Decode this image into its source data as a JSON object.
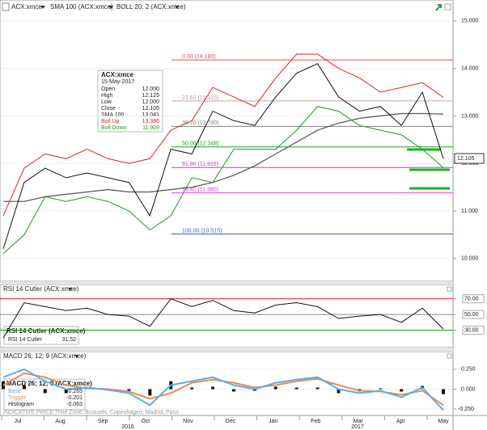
{
  "chart_data": [
    {
      "type": "line",
      "title": "ACX:xmce",
      "bands_label": "BOLL 20; 2 (ACX:xmce)",
      "ylim": [
        9.52,
        15.44
      ],
      "yticks": [
        {
          "value": 10,
          "label": "10.000"
        },
        {
          "value": 11,
          "label": "11.000"
        },
        {
          "value": 12,
          "label": "12.000"
        },
        {
          "value": 13,
          "label": "13.000"
        },
        {
          "value": 14,
          "label": "14.000"
        },
        {
          "value": 15,
          "label": "15.000"
        }
      ],
      "last_price": 12.105,
      "series": [
        {
          "name": "ACX:xmce",
          "color": "#111111",
          "values": [
            10.2,
            11.6,
            11.9,
            11.7,
            11.8,
            11.7,
            11.6,
            10.9,
            12.3,
            12.2,
            13.1,
            12.9,
            12.8,
            13.4,
            13.9,
            14.1,
            13.4,
            13.1,
            13.2,
            12.8,
            13.5,
            12.1
          ]
        },
        {
          "name": "SMA 100 (ACX:xmce)",
          "color": "#555555",
          "values": [
            11.2,
            11.2,
            11.3,
            11.35,
            11.4,
            11.45,
            11.4,
            11.4,
            11.45,
            11.5,
            11.6,
            11.75,
            11.95,
            12.2,
            12.45,
            12.7,
            12.85,
            12.95,
            13.0,
            13.05,
            13.05,
            13.04
          ]
        },
        {
          "name": "Boll Up",
          "color": "#e02020",
          "values": [
            10.9,
            11.9,
            12.2,
            12.1,
            12.3,
            12.1,
            12.0,
            12.1,
            12.7,
            12.9,
            13.6,
            13.4,
            13.2,
            13.8,
            14.3,
            14.3,
            14.0,
            13.8,
            13.5,
            13.6,
            13.7,
            13.39
          ]
        },
        {
          "name": "Boll Down",
          "color": "#1a9a1a",
          "values": [
            10.1,
            10.5,
            11.3,
            11.2,
            11.3,
            11.2,
            11.0,
            10.6,
            10.9,
            11.7,
            11.6,
            12.3,
            12.3,
            12.3,
            12.7,
            13.2,
            13.1,
            12.8,
            12.7,
            12.6,
            12.3,
            11.91
          ]
        }
      ],
      "fib_levels": [
        {
          "value": 14.18,
          "label": "0.00 (14.180)",
          "color": "#e05050"
        },
        {
          "value": 13.315,
          "label": "23.60 (13.315)",
          "color": "#c8a0a0"
        },
        {
          "value": 12.78,
          "label": "38.20 (12.780)",
          "color": "#808080"
        },
        {
          "value": 12.348,
          "label": "50.00 (12.348)",
          "color": "#20a020"
        },
        {
          "value": 11.915,
          "label": "61.80 (11.915)",
          "color": "#c040c0"
        },
        {
          "value": 11.38,
          "label": "76.40 (11.380)",
          "color": "#e040e0"
        },
        {
          "value": 10.515,
          "label": "100.00 (10.515)",
          "color": "#4060c0"
        }
      ],
      "info": {
        "symbol": "ACX:xmce",
        "date": "15-May-2017",
        "rows": [
          {
            "label": "Open",
            "value": "12.000"
          },
          {
            "label": "High",
            "value": "12.125"
          },
          {
            "label": "Low",
            "value": "12.000"
          },
          {
            "label": "Close",
            "value": "12.105"
          },
          {
            "label": "SMA 100",
            "value": "13.041"
          },
          {
            "label": "Boll Up",
            "value": "13.386"
          },
          {
            "label": "Boll Down",
            "value": "11.909"
          }
        ]
      }
    },
    {
      "type": "line",
      "title": "RSI 14 Cutler (ACX:xmce)",
      "ylim": [
        10,
        82
      ],
      "yticks": [
        {
          "value": 30,
          "label": "30.00"
        },
        {
          "value": 50,
          "label": "50.00"
        },
        {
          "value": 70,
          "label": "70.00"
        }
      ],
      "line_colors": [
        "#1a9a1a",
        "#888888",
        "#e02020"
      ],
      "box": {
        "title": "RSI 14 Cutler (ACX:xmce)",
        "label": "RSI 14 Cutler",
        "value": "31.52"
      },
      "series": [
        {
          "name": "RSI 14 Cutler",
          "color": "#111111",
          "values": [
            20,
            65,
            60,
            55,
            58,
            50,
            48,
            35,
            70,
            60,
            68,
            55,
            52,
            62,
            65,
            60,
            45,
            48,
            50,
            40,
            58,
            31.52
          ]
        }
      ]
    },
    {
      "type": "macd",
      "title": "MACD 26; 12; 9 (ACX:xmce)",
      "ylim": [
        -0.31,
        0.36
      ],
      "yticks": [
        {
          "value": -0.25,
          "label": "-0.250"
        },
        {
          "value": 0,
          "label": "0.000"
        },
        {
          "value": 0.25,
          "label": "0.250"
        }
      ],
      "box": {
        "title": "MACD 26; 12; 9 (ACX:xmce)",
        "rows": [
          {
            "label": "Base",
            "value": "-0.265"
          },
          {
            "label": "Trigger",
            "value": "-0.201"
          },
          {
            "label": "Histogram",
            "value": "-0.063"
          }
        ]
      },
      "series": [
        {
          "name": "Base",
          "color": "#5aaee8",
          "values": [
            0.15,
            0.25,
            0.1,
            0.0,
            0.02,
            -0.01,
            -0.05,
            -0.2,
            0.05,
            0.1,
            0.15,
            0.05,
            0.0,
            0.08,
            0.12,
            0.15,
            0.0,
            -0.05,
            -0.02,
            -0.1,
            0.02,
            -0.265
          ]
        },
        {
          "name": "Trigger",
          "color": "#f08a50",
          "values": [
            0.05,
            0.2,
            0.15,
            0.05,
            0.01,
            0.0,
            -0.03,
            -0.12,
            -0.05,
            0.08,
            0.12,
            0.08,
            0.02,
            0.05,
            0.1,
            0.13,
            0.05,
            -0.02,
            -0.03,
            -0.07,
            -0.02,
            -0.201
          ]
        },
        {
          "name": "Histogram",
          "color": "#111111",
          "values": [
            0.1,
            0.05,
            -0.05,
            -0.05,
            0.01,
            -0.01,
            -0.02,
            -0.08,
            0.1,
            0.02,
            0.03,
            -0.03,
            -0.02,
            0.03,
            0.02,
            0.02,
            -0.05,
            -0.03,
            0.01,
            -0.03,
            0.04,
            -0.063
          ]
        }
      ]
    }
  ],
  "x_axis": {
    "months": [
      "Jul",
      "Aug",
      "Sep",
      "Oct",
      "Nov",
      "Dec",
      "Jan",
      "Feb",
      "Mar",
      "Apr",
      "May"
    ],
    "years": [
      "2016",
      "2017"
    ]
  },
  "footer": "INDICATIVE PRICE  Time Zone: Brussels, Copenhagen, Madrid, Paris"
}
